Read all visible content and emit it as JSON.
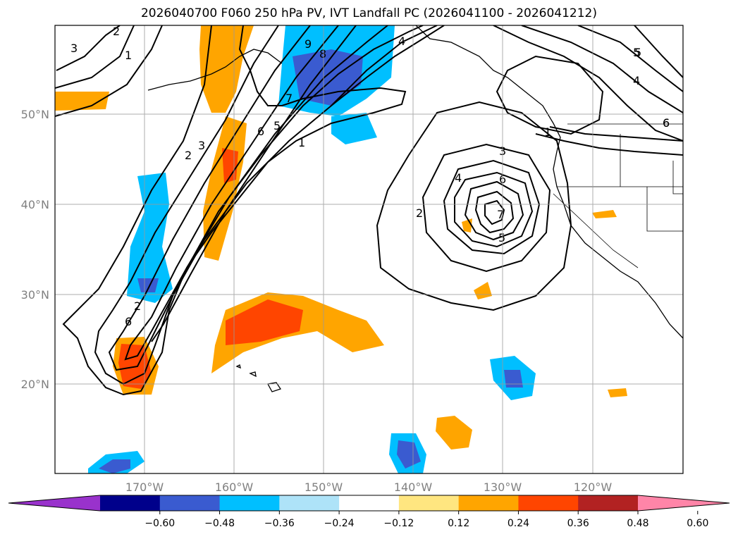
{
  "title": "2026040700 F060 250 hPa PV, IVT Landfall PC (2026041100 - 2026041212)",
  "map": {
    "lon_labels": [
      "170°W",
      "160°W",
      "150°W",
      "140°W",
      "130°W",
      "120°W"
    ],
    "lat_labels": [
      "50°N",
      "40°N",
      "30°N",
      "20°N"
    ]
  },
  "contour_labels": [
    {
      "text": "1"
    },
    {
      "text": "2"
    },
    {
      "text": "3"
    },
    {
      "text": "4"
    },
    {
      "text": "5"
    },
    {
      "text": "6"
    },
    {
      "text": "7"
    },
    {
      "text": "8"
    },
    {
      "text": "9"
    },
    {
      "text": "2"
    },
    {
      "text": "3"
    },
    {
      "text": "6"
    },
    {
      "text": "5"
    },
    {
      "text": "1"
    },
    {
      "text": "2"
    },
    {
      "text": "6"
    },
    {
      "text": "3"
    },
    {
      "text": "4"
    },
    {
      "text": "6"
    },
    {
      "text": "7"
    },
    {
      "text": "5"
    },
    {
      "text": "2"
    },
    {
      "text": "1"
    },
    {
      "text": "5"
    },
    {
      "text": "4"
    },
    {
      "text": "6"
    }
  ],
  "colorbar": {
    "ticks": [
      "−0.60",
      "−0.48",
      "−0.36",
      "−0.24",
      "−0.12",
      "0.12",
      "0.24",
      "0.36",
      "0.48",
      "0.60"
    ],
    "colors": [
      "#9932cc",
      "#00008b",
      "#3a5bd0",
      "#00bfff",
      "#aee3f8",
      "#ffffff",
      "#ffe680",
      "#ffa500",
      "#ff4500",
      "#b22222",
      "#ff85a8"
    ]
  }
}
